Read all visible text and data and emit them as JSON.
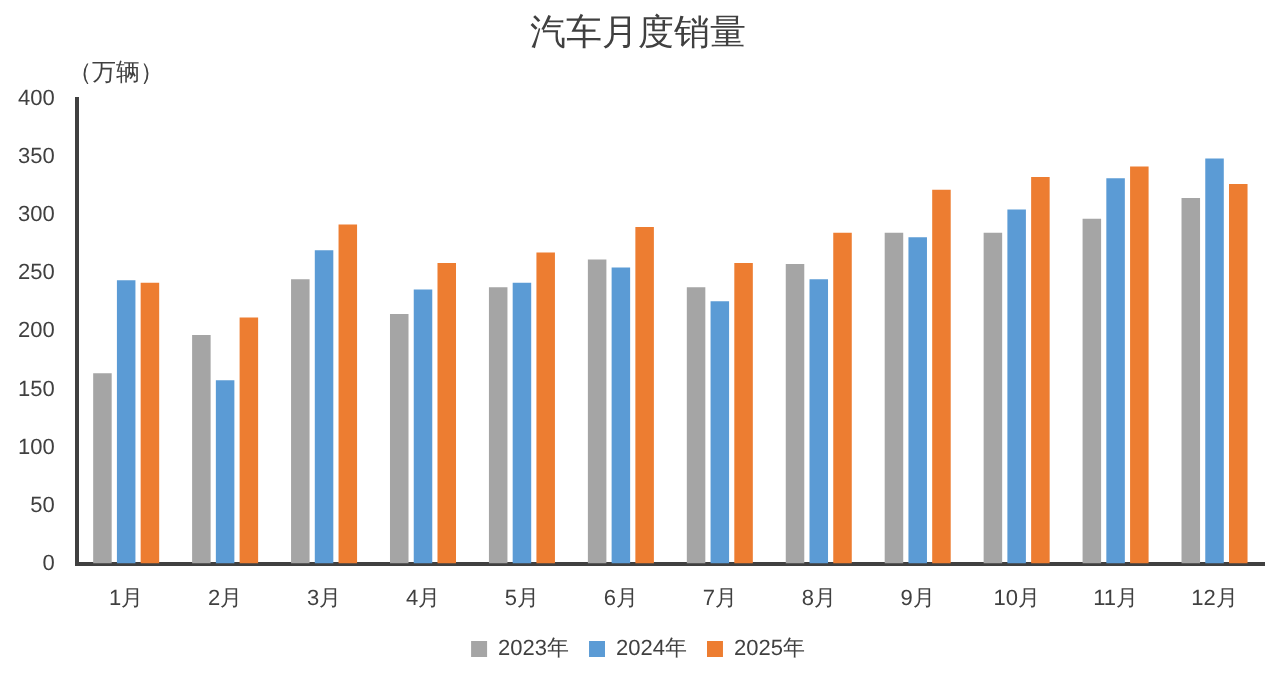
{
  "chart_data": {
    "type": "bar",
    "title": "汽车月度销量",
    "ylabel": "（万辆）",
    "categories": [
      "1月",
      "2月",
      "3月",
      "4月",
      "5月",
      "6月",
      "7月",
      "8月",
      "9月",
      "10月",
      "11月",
      "12月"
    ],
    "series": [
      {
        "name": "2023年",
        "color": "#a5a5a5",
        "values": [
          164,
          197,
          245,
          215,
          238,
          262,
          238,
          258,
          285,
          285,
          297,
          315
        ]
      },
      {
        "name": "2024年",
        "color": "#5b9bd5",
        "values": [
          244,
          158,
          270,
          236,
          242,
          255,
          226,
          245,
          281,
          305,
          332,
          349
        ]
      },
      {
        "name": "2025年",
        "color": "#ed7d31",
        "values": [
          242,
          212,
          292,
          259,
          268,
          290,
          259,
          285,
          322,
          333,
          342,
          327
        ]
      }
    ],
    "ylim": [
      0,
      400
    ],
    "yticks": [
      0,
      50,
      100,
      150,
      200,
      250,
      300,
      350,
      400
    ],
    "grid": false,
    "legend": "bottom"
  }
}
